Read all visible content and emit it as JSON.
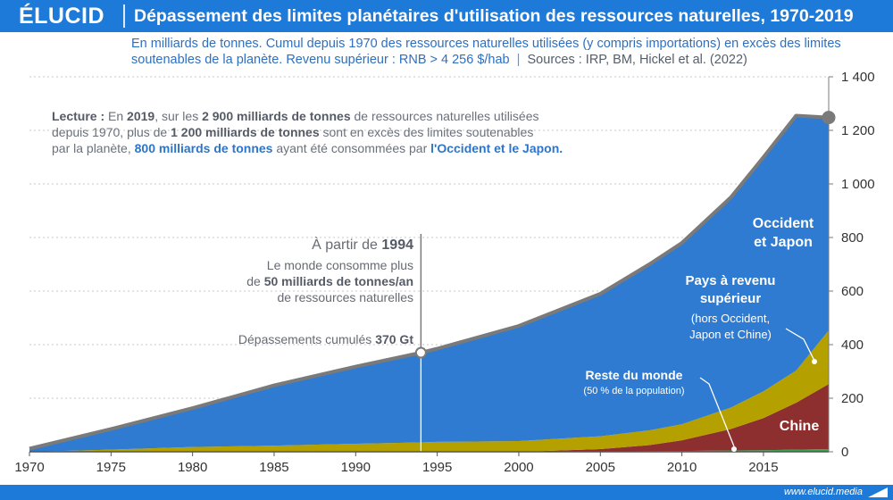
{
  "header": {
    "brand": "ÉLUCID",
    "title": "Dépassement des limites planétaires d'utilisation des ressources naturelles, 1970-2019"
  },
  "subtitle": {
    "line1": "En milliards de tonnes. Cumul depuis 1970 des ressources naturelles utilisées (y compris importations) en excès des limites",
    "line2": "soutenables de la planète. Revenu supérieur : RNB > 4 256 $/hab",
    "separator": "|",
    "sources": "Sources : IRP, BM, Hickel et al. (2022)"
  },
  "reading_note": {
    "l1": [
      {
        "t": "Lecture : ",
        "b": true,
        "c": "#555b66"
      },
      {
        "t": "En ",
        "b": false,
        "c": "#6a707a"
      },
      {
        "t": "2019",
        "b": true,
        "c": "#555b66"
      },
      {
        "t": ", sur les ",
        "b": false,
        "c": "#6a707a"
      },
      {
        "t": "2 900 milliards de tonnes",
        "b": true,
        "c": "#555b66"
      },
      {
        "t": " de ressources naturelles utilisées",
        "b": false,
        "c": "#6a707a"
      }
    ],
    "l2": [
      {
        "t": "depuis 1970, plus de ",
        "b": false,
        "c": "#6a707a"
      },
      {
        "t": "1 200 milliards de tonnes",
        "b": true,
        "c": "#555b66"
      },
      {
        "t": " sont en excès des limites soutenables",
        "b": false,
        "c": "#6a707a"
      }
    ],
    "l3": [
      {
        "t": "par la planète, ",
        "b": false,
        "c": "#6a707a"
      },
      {
        "t": "800 milliards de tonnes",
        "b": true,
        "c": "#2e75c9"
      },
      {
        "t": " ayant été consommées par ",
        "b": false,
        "c": "#6a707a"
      },
      {
        "t": "l'Occident et le Japon.",
        "b": true,
        "c": "#2e75c9"
      }
    ]
  },
  "annotation_1994": {
    "line1_prefix": "À partir de ",
    "line1_year": "1994",
    "line2": "Le monde consomme plus",
    "line3_prefix": "de ",
    "line3_bold": "50 milliards de tonnes/an",
    "line4": "de ressources naturelles",
    "cumul_label": "Dépassements cumulés ",
    "cumul_value": "370 Gt"
  },
  "region_labels": {
    "occident_l1": "Occident",
    "occident_l2": "et Japon",
    "revenu_l1": "Pays à revenu",
    "revenu_l2": "supérieur",
    "revenu_note1": "(hors Occident,",
    "revenu_note2": "Japon et Chine)",
    "reste_l1": "Reste du monde",
    "reste_note": "(50 % de la population)",
    "chine": "Chine"
  },
  "colors": {
    "brand": "#1d7ad8",
    "occident": "#2f7bd2",
    "revenu_superieur": "#b4a100",
    "chine": "#8e2f2f",
    "reste_du_monde": "#3aa357",
    "total_line": "#7a7a7a",
    "grid": "#c8c8c8"
  },
  "chart_data": {
    "type": "area",
    "stacked": true,
    "title": "Dépassement des limites planétaires d'utilisation des ressources naturelles, 1970-2019",
    "xlabel": "",
    "ylabel": "",
    "xlim": [
      1970,
      2019
    ],
    "ylim": [
      0,
      1400
    ],
    "x_ticks": [
      1970,
      1975,
      1980,
      1985,
      1990,
      1995,
      2000,
      2005,
      2010,
      2015
    ],
    "x_tick_labels": [
      "1970",
      "1975",
      "1980",
      "1985",
      "1990",
      "1995",
      "2000",
      "2005",
      "2010",
      "2015"
    ],
    "y_ticks": [
      0,
      200,
      400,
      600,
      800,
      1000,
      1200,
      1400
    ],
    "y_tick_labels": [
      "0",
      "200",
      "400",
      "600",
      "800",
      "1 000",
      "1 200",
      "1 400"
    ],
    "y_axis_side": "right",
    "grid": true,
    "x": [
      1970,
      1975,
      1980,
      1985,
      1990,
      1994,
      1995,
      2000,
      2005,
      2008,
      2010,
      2013,
      2015,
      2017,
      2019
    ],
    "series": [
      {
        "name": "Reste du monde",
        "color": "#3aa357",
        "values": [
          0,
          0,
          0,
          0,
          0,
          0,
          0,
          0,
          1,
          2,
          3,
          5,
          6,
          8,
          10
        ]
      },
      {
        "name": "Chine",
        "color": "#8e2f2f",
        "values": [
          0,
          0,
          0,
          0,
          0,
          0,
          0,
          0,
          9,
          23,
          40,
          80,
          120,
          175,
          243
        ]
      },
      {
        "name": "Pays à revenu supérieur",
        "color": "#b4a100",
        "values": [
          0,
          8,
          18,
          23,
          30,
          35,
          37,
          40,
          48,
          55,
          60,
          80,
          100,
          120,
          200
        ]
      },
      {
        "name": "Occident et Japon",
        "color": "#2f7bd2",
        "values": [
          12,
          77,
          145,
          225,
          288,
          335,
          348,
          430,
          532,
          620,
          677,
          785,
          874,
          952,
          795
        ]
      }
    ],
    "total_line": [
      12,
      85,
      163,
      248,
      318,
      370,
      385,
      470,
      590,
      700,
      780,
      950,
      1100,
      1255,
      1248
    ],
    "highlight_points": [
      {
        "x": 1994,
        "y": 370
      },
      {
        "x": 2019,
        "y": 1248
      }
    ]
  }
}
